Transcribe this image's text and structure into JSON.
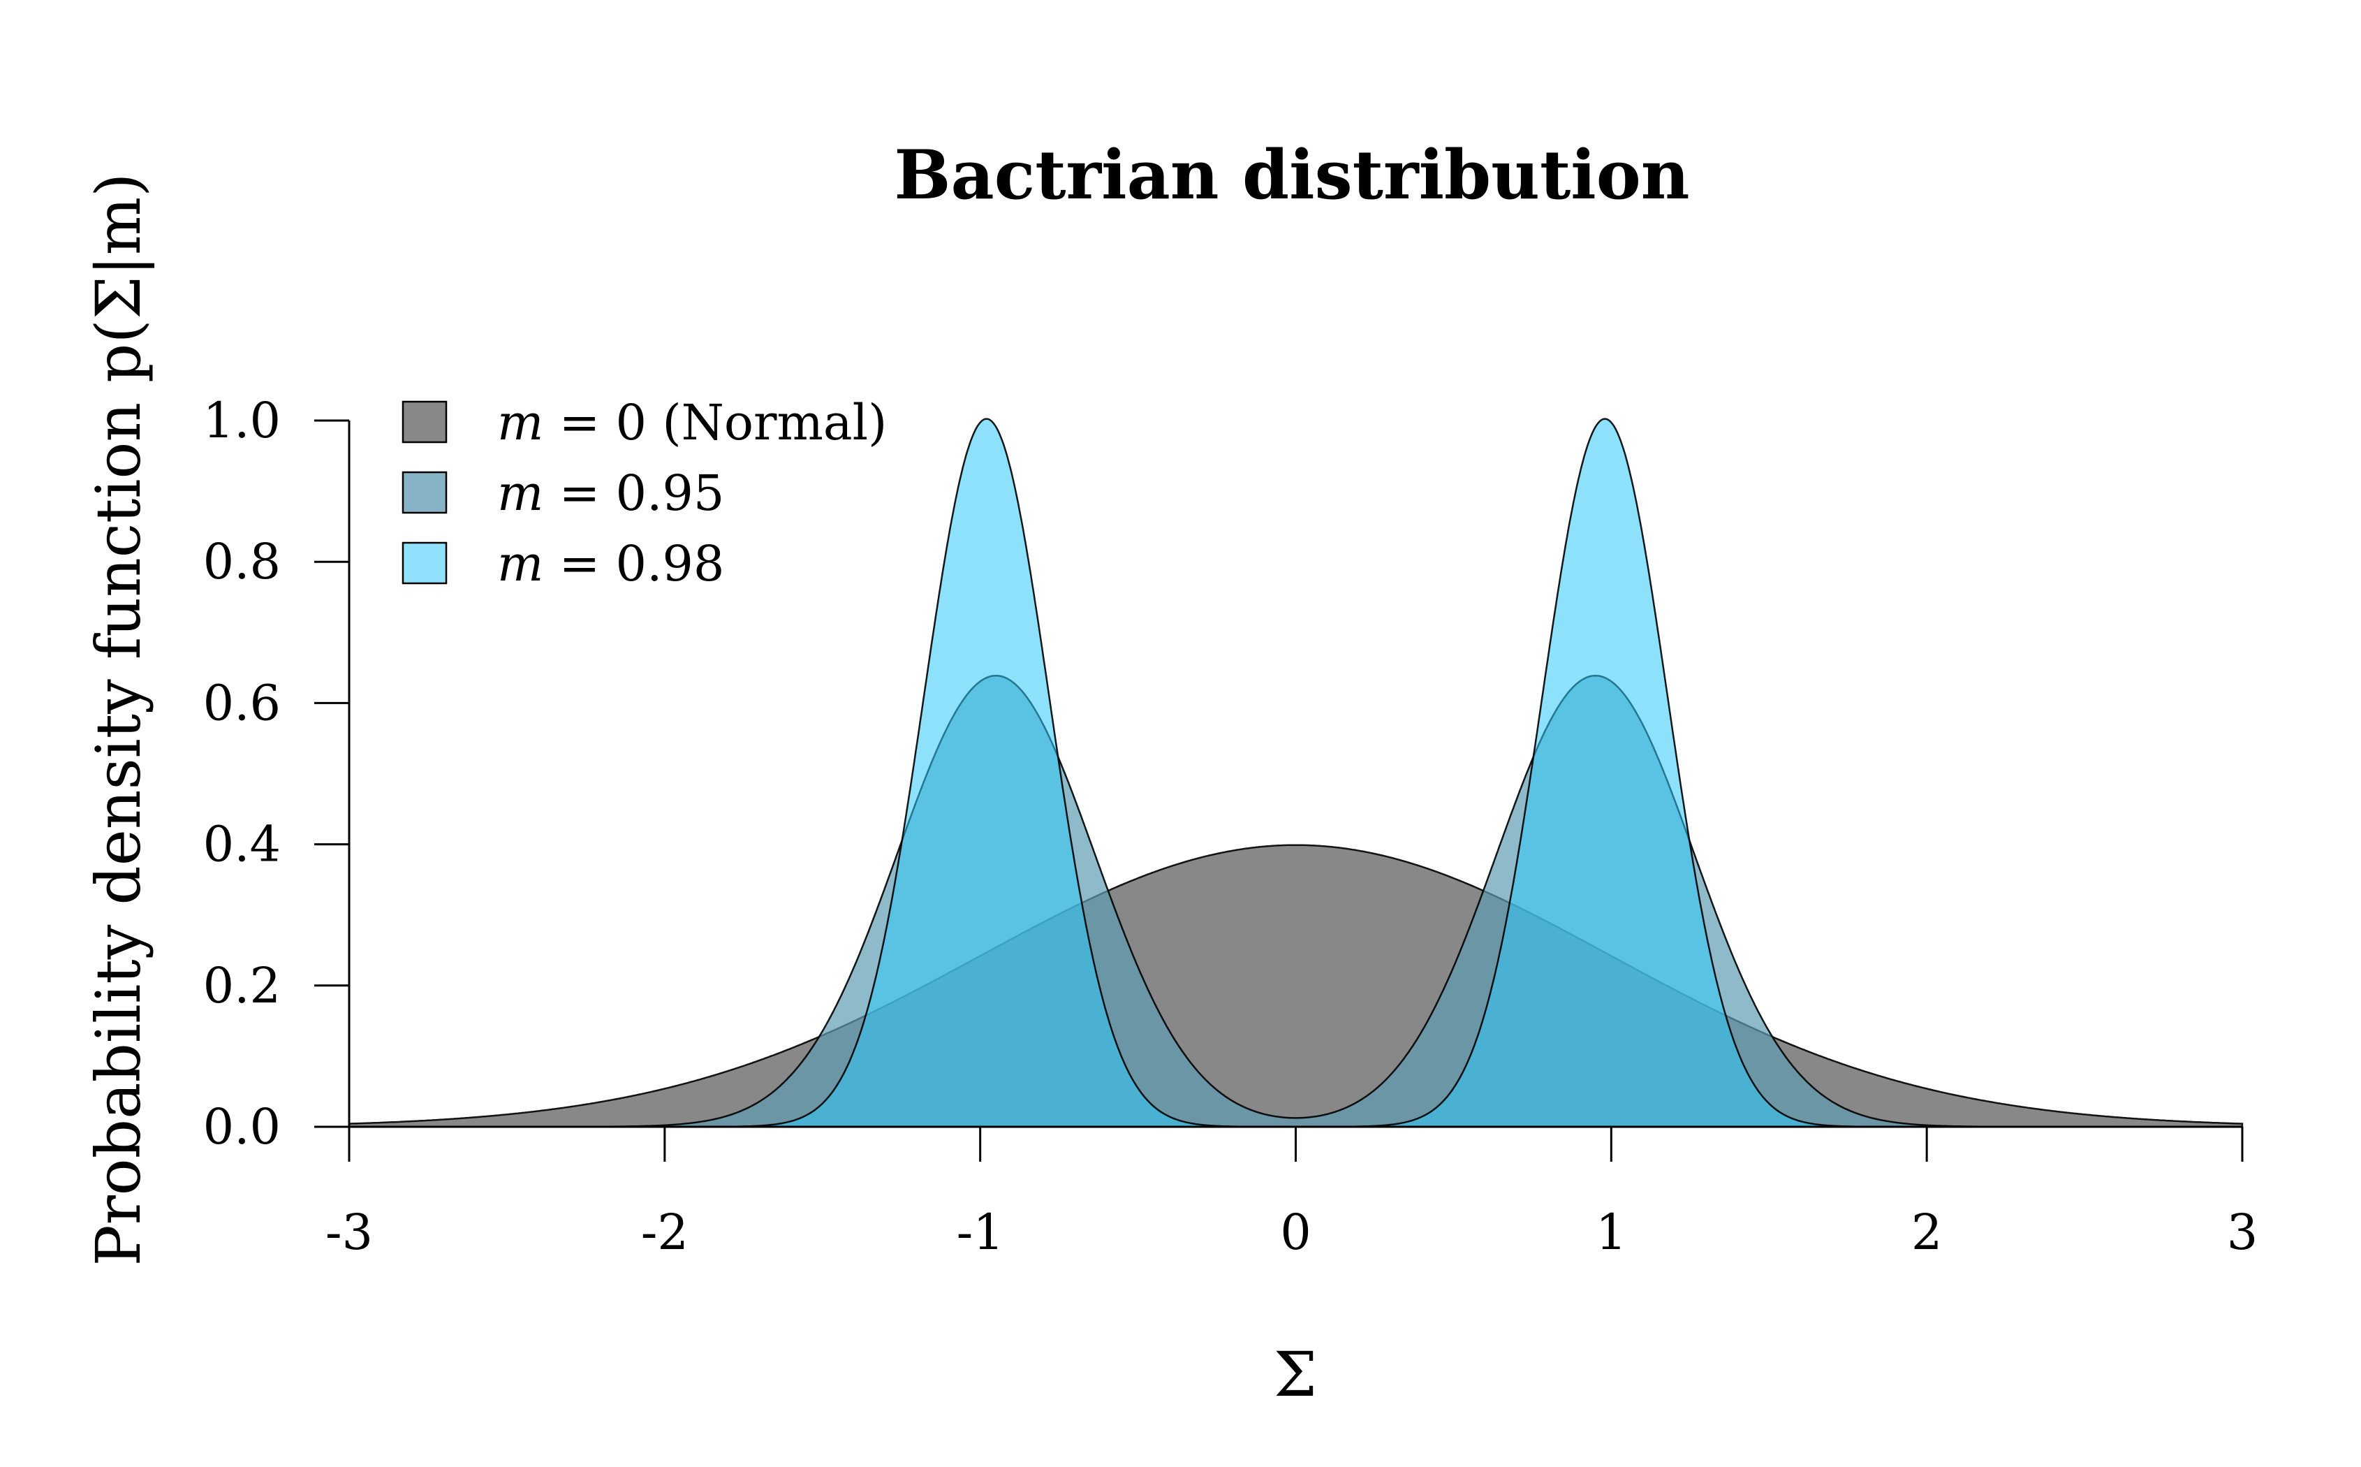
{
  "chart_data": {
    "type": "area",
    "title": "Bactrian distribution",
    "xlabel": "Σ",
    "ylabel": "Probability density function p(Σ|m)",
    "xlim": [
      -3,
      3
    ],
    "ylim": [
      0,
      1.0
    ],
    "x_ticks": [
      "-3",
      "-2",
      "-1",
      "0",
      "1",
      "2",
      "3"
    ],
    "y_ticks": [
      "0.0",
      "0.2",
      "0.4",
      "0.6",
      "0.8",
      "1.0"
    ],
    "grid": false,
    "legend_position": "top-left",
    "series": [
      {
        "name": "m = 0 (Normal)",
        "m": 0,
        "fill": "#888888",
        "opacity": 1.0
      },
      {
        "name": "m = 0.95",
        "m": 0.95,
        "fill": "#5f9cb4",
        "opacity": 0.7
      },
      {
        "name": "m = 0.98",
        "m": 0.98,
        "fill": "#2fc8f8",
        "opacity": 0.55
      }
    ],
    "legend": [
      {
        "var": "m",
        "rest": " = 0 (Normal)",
        "color": "#888888"
      },
      {
        "var": "m",
        "rest": " = 0.95",
        "color": "#86b3c6"
      },
      {
        "var": "m",
        "rest": " = 0.98",
        "color": "#8fe1fc"
      }
    ]
  }
}
